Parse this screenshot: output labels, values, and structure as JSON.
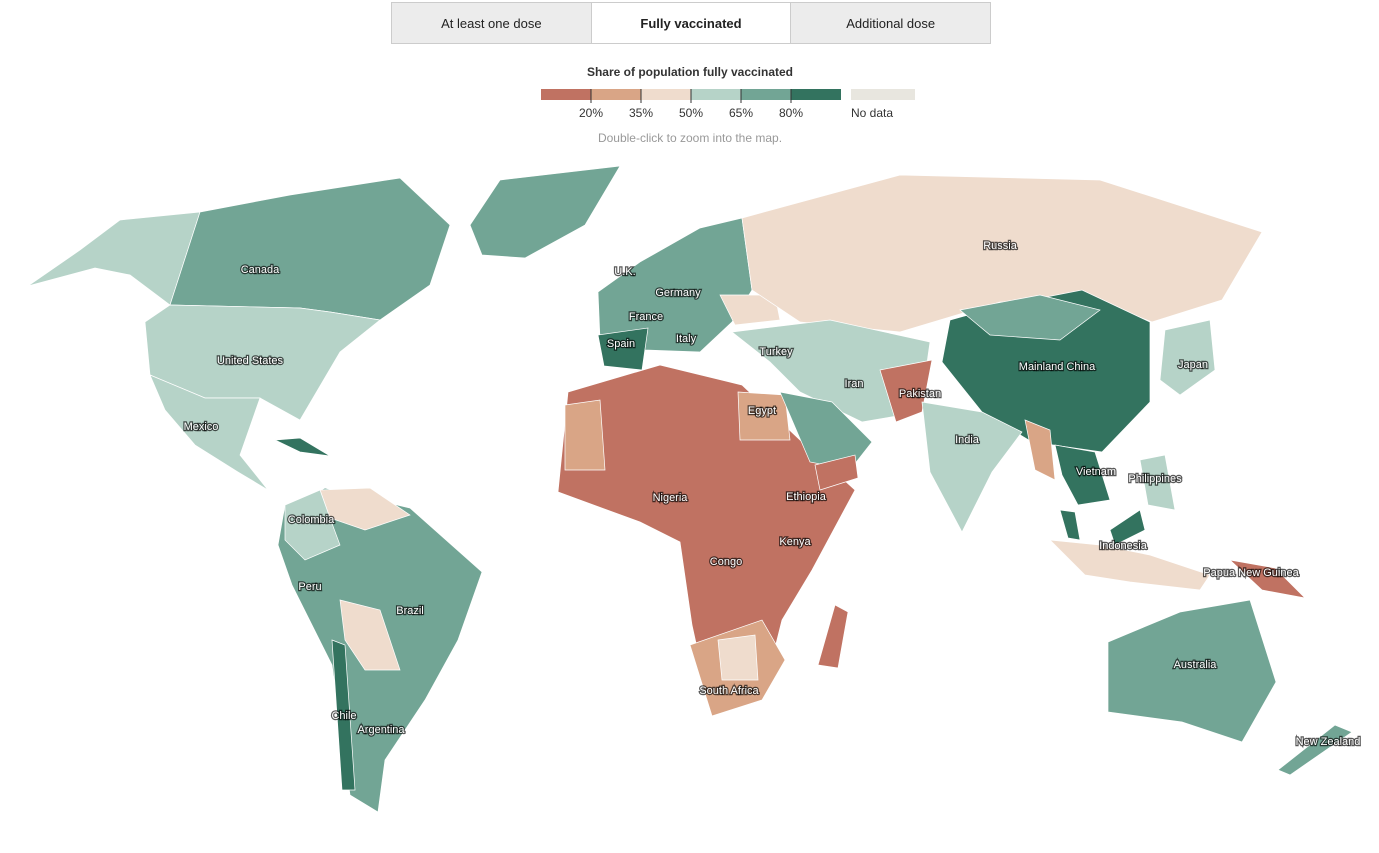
{
  "tabs": [
    "At least one dose",
    "Fully vaccinated",
    "Additional dose"
  ],
  "legend": {
    "title": "Share of population fully vaccinated",
    "ticks": [
      "20%",
      "35%",
      "50%",
      "65%",
      "80%"
    ],
    "no_data": "No data"
  },
  "hint": "Double-click to zoom into the map.",
  "map": {
    "labels": [
      "Canada",
      "United States",
      "Mexico",
      "Colombia",
      "Peru",
      "Brazil",
      "Chile",
      "Argentina",
      "U.K.",
      "Germany",
      "France",
      "Spain",
      "Italy",
      "Turkey",
      "Russia",
      "Iran",
      "Egypt",
      "Pakistan",
      "Mainland China",
      "Japan",
      "India",
      "Nigeria",
      "Ethiopia",
      "Kenya",
      "Congo",
      "Vietnam",
      "Philippines",
      "Indonesia",
      "Papua New Guinea",
      "South Africa",
      "Australia",
      "New Zealand"
    ]
  }
}
